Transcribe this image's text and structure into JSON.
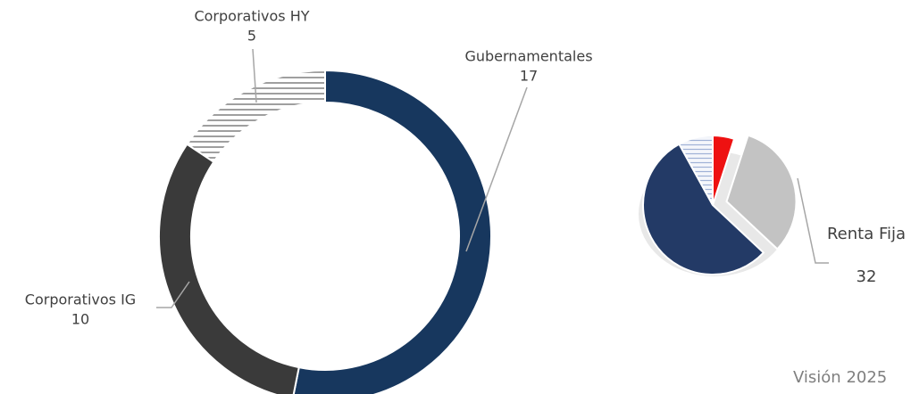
{
  "chart_data": [
    {
      "type": "donut",
      "categories": [
        "Gubernamentales",
        "Corporativos IG",
        "Corporativos HY"
      ],
      "series": [
        {
          "values": [
            17,
            10,
            5
          ],
          "colors": [
            "#17375e",
            "#3a3a3a",
            "hatch-gray"
          ]
        }
      ]
    },
    {
      "type": "pie",
      "categories": [
        null,
        "Renta Fija",
        null,
        null
      ],
      "series": [
        {
          "values": [
            5,
            32,
            55,
            8
          ],
          "colors": [
            "#ee1111",
            "#c3c3c3",
            "#233a66",
            "hatch-blue"
          ]
        }
      ]
    }
  ],
  "footer": "Visión 2025"
}
